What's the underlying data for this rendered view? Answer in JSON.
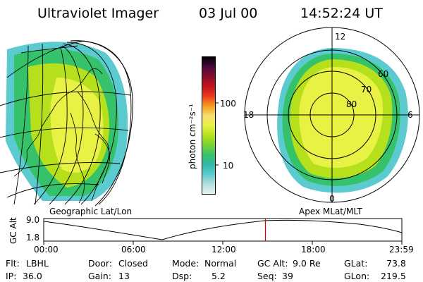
{
  "header": {
    "instrument": "Ultraviolet Imager",
    "date": "03 Jul 00",
    "time": "14:52:24 UT"
  },
  "colorbar": {
    "unit_label": "photon cm⁻²s⁻¹",
    "ticks": [
      "100",
      "10"
    ],
    "colors": [
      "#e6f3f3",
      "#b5dedb",
      "#5bcbd0",
      "#33b9a8",
      "#35c26a",
      "#7ad332",
      "#b6e01c",
      "#e7f245",
      "#f6de6f",
      "#f59e1a",
      "#ee3a1f",
      "#c2101e",
      "#8a0e2c",
      "#4a0640",
      "#000000"
    ]
  },
  "geo_map": {
    "caption": "Geographic Lat/Lon"
  },
  "polar_plot": {
    "caption": "Apex MLat/MLT",
    "mlt_labels": {
      "top": "12",
      "bottom": "0",
      "left": "18",
      "right": "6"
    },
    "lat_labels": [
      "60",
      "70",
      "80"
    ]
  },
  "timeline": {
    "ylabel": "GC Alt",
    "yticks": [
      "9.0",
      "1.8"
    ],
    "xticks": [
      "00:00",
      "06:00",
      "12:00",
      "18:00",
      "23:59"
    ],
    "current_time_fraction": 0.619,
    "marker_color": "#dd0000"
  },
  "info": {
    "flt_label": "Flt:",
    "flt_value": "LBHL",
    "ip_label": "IP:",
    "ip_value": "36.0",
    "door_label": "Door:",
    "door_value": "Closed",
    "gain_label": "Gain:",
    "gain_value": "13",
    "mode_label": "Mode:",
    "mode_value": "Normal",
    "dsp_label": "Dsp:",
    "dsp_value": "5.2",
    "gcalt_label": "GC Alt:",
    "gcalt_value": "9.0 Re",
    "seq_label": "Seq:",
    "seq_value": "39",
    "glat_label": "GLat:",
    "glat_value": "73.8",
    "glon_label": "GLon:",
    "glon_value": "219.5"
  }
}
